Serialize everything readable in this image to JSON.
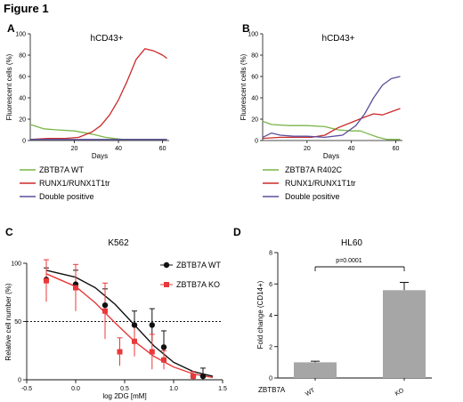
{
  "figure_title": "Figure 1",
  "colors": {
    "green": "#7ab648",
    "red": "#cc2a2a",
    "purple": "#5b4f9c",
    "black": "#111111",
    "bar": "#a6a6a6",
    "kored": "#e8393b"
  },
  "chart_data": [
    {
      "panel": "A",
      "type": "line",
      "title": "hCD43+",
      "xlabel": "Days",
      "ylabel": "Fluorescent cells (%)",
      "xlim": [
        0,
        63
      ],
      "ylim": [
        0,
        100
      ],
      "xticks": [
        "20",
        "40",
        "60"
      ],
      "yticks": [
        "0",
        "20",
        "40",
        "60",
        "80",
        "100"
      ],
      "series": [
        {
          "name": "ZBTB7A WT",
          "color": "#7ab648",
          "x": [
            0,
            6,
            12,
            20,
            28,
            34,
            38,
            42,
            46,
            50,
            54,
            58,
            62
          ],
          "y": [
            15,
            11,
            10,
            9,
            6,
            3,
            2,
            1,
            1,
            1,
            1,
            1,
            1
          ]
        },
        {
          "name": "RUNX1/RUNX1T1tr",
          "color": "#cc2a2a",
          "x": [
            0,
            8,
            16,
            22,
            28,
            32,
            36,
            40,
            44,
            48,
            52,
            56,
            60,
            62
          ],
          "y": [
            1,
            2,
            2,
            3,
            8,
            14,
            24,
            38,
            56,
            76,
            86,
            84,
            80,
            77
          ]
        },
        {
          "name": "Double positive",
          "color": "#5b4f9c",
          "x": [
            0,
            10,
            20,
            30,
            40,
            50,
            62
          ],
          "y": [
            1,
            1,
            1,
            1,
            1,
            1,
            1
          ]
        }
      ],
      "legend": [
        "ZBTB7A WT",
        "RUNX1/RUNX1T1tr",
        "Double positive"
      ]
    },
    {
      "panel": "B",
      "type": "line",
      "title": "hCD43+",
      "xlabel": "Days",
      "ylabel": "Fluorescent cells (%)",
      "xlim": [
        0,
        63
      ],
      "ylim": [
        0,
        100
      ],
      "xticks": [
        "20",
        "40",
        "60"
      ],
      "yticks": [
        "0",
        "20",
        "40",
        "60",
        "80",
        "100"
      ],
      "series": [
        {
          "name": "ZBTB7A R402C",
          "color": "#7ab648",
          "x": [
            0,
            4,
            12,
            20,
            28,
            34,
            40,
            44,
            48,
            52,
            56,
            62
          ],
          "y": [
            18,
            15,
            14,
            14,
            13,
            10,
            9,
            9,
            6,
            3,
            1,
            1
          ]
        },
        {
          "name": "RUNX1/RUNX1T1tr",
          "color": "#cc2a2a",
          "x": [
            0,
            8,
            16,
            22,
            28,
            34,
            40,
            46,
            50,
            54,
            58,
            62
          ],
          "y": [
            2,
            3,
            3,
            3,
            5,
            12,
            17,
            22,
            25,
            24,
            27,
            30
          ]
        },
        {
          "name": "Double positive",
          "color": "#5b4f9c",
          "x": [
            0,
            4,
            8,
            14,
            20,
            28,
            36,
            42,
            46,
            50,
            54,
            58,
            62
          ],
          "y": [
            3,
            7,
            5,
            4,
            4,
            3,
            5,
            14,
            25,
            40,
            52,
            58,
            60
          ]
        }
      ],
      "legend": [
        "ZBTB7A R402C",
        "RUNX1/RUNX1T1tr",
        "Double positive"
      ]
    },
    {
      "panel": "C",
      "type": "scatter",
      "title": "K562",
      "xlabel": "log 2DG [mM]",
      "ylabel": "Relative cell number (%)",
      "xlim": [
        -0.5,
        1.5
      ],
      "ylim": [
        0,
        100
      ],
      "xticks": [
        "-0.5",
        "0.0",
        "0.5",
        "1.0",
        "1.5"
      ],
      "yticks": [
        "0",
        "50",
        "100"
      ],
      "reference_line_y": 50,
      "series": [
        {
          "name": "ZBTB7A WT",
          "color": "#111111",
          "marker": "circle",
          "x": [
            -0.3,
            0.0,
            0.3,
            0.6,
            0.78,
            0.9,
            1.2,
            1.3
          ],
          "y": [
            86,
            82,
            64,
            47,
            47,
            28,
            3,
            3
          ],
          "err": [
            10,
            12,
            14,
            12,
            14,
            14,
            4,
            7
          ],
          "fit": {
            "x": [
              -0.3,
              0,
              0.2,
              0.4,
              0.6,
              0.8,
              1.0,
              1.2,
              1.4
            ],
            "y": [
              94,
              88,
              79,
              65,
              47,
              29,
              15,
              7,
              3
            ]
          }
        },
        {
          "name": "ZBTB7A KO",
          "color": "#e8393b",
          "marker": "square",
          "x": [
            -0.3,
            0.0,
            0.3,
            0.45,
            0.6,
            0.78,
            0.9,
            1.2
          ],
          "y": [
            85,
            79,
            59,
            24,
            33,
            24,
            17,
            3
          ],
          "err": [
            18,
            20,
            24,
            12,
            13,
            15,
            8,
            4
          ],
          "fit": {
            "x": [
              -0.3,
              0,
              0.2,
              0.4,
              0.6,
              0.8,
              1.0,
              1.2,
              1.4
            ],
            "y": [
              91,
              80,
              66,
              49,
              33,
              20,
              11,
              5,
              2
            ]
          }
        }
      ],
      "legend": [
        "ZBTB7A WT",
        "ZBTB7A KO"
      ]
    },
    {
      "panel": "D",
      "type": "bar",
      "title": "HL60",
      "xlabel": "ZBTB7A",
      "ylabel": "Fold change (CD14+)",
      "ylim": [
        0,
        8
      ],
      "yticks": [
        "0",
        "2",
        "4",
        "6",
        "8"
      ],
      "categories": [
        "WT",
        "KO"
      ],
      "values": [
        1.0,
        5.6
      ],
      "err": [
        0.07,
        0.5
      ],
      "significance": "p=0.0001"
    }
  ]
}
